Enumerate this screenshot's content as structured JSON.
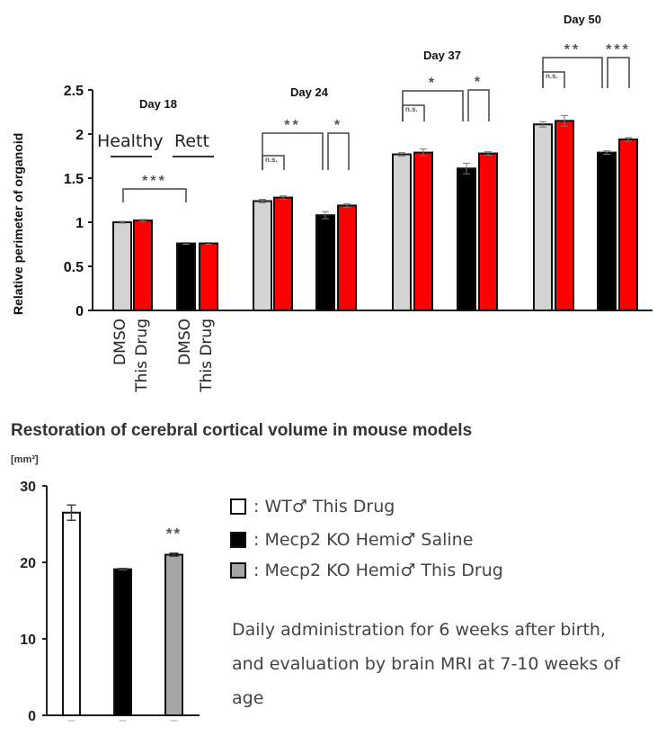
{
  "chart_data": [
    {
      "type": "bar",
      "ylabel": "Relative perimeter of organoid",
      "ylim": [
        0,
        2.5
      ],
      "yticks": [
        "0",
        "0.5",
        "1",
        "1.5",
        "2",
        "2.5"
      ],
      "groups": [
        "Day 18",
        "Day 24",
        "Day 37",
        "Day 50"
      ],
      "group_labels": {
        "healthy": "Healthy",
        "rett": "Rett"
      },
      "xtick_labels": [
        "DMSO",
        "This Drug",
        "DMSO",
        "This Drug"
      ],
      "series": [
        {
          "name": "Healthy DMSO",
          "color": "#d3d3d3",
          "values": [
            1.0,
            1.24,
            1.77,
            2.11
          ],
          "errors": [
            0.01,
            0.02,
            0.02,
            0.03
          ]
        },
        {
          "name": "Healthy This Drug",
          "color": "#ff0000",
          "values": [
            1.02,
            1.28,
            1.79,
            2.15
          ],
          "errors": [
            0.01,
            0.02,
            0.04,
            0.06
          ]
        },
        {
          "name": "Rett DMSO",
          "color": "#000000",
          "values": [
            0.76,
            1.08,
            1.61,
            1.79
          ],
          "errors": [
            0.01,
            0.04,
            0.06,
            0.02
          ]
        },
        {
          "name": "Rett This Drug",
          "color": "#ff0000",
          "values": [
            0.76,
            1.19,
            1.78,
            1.94
          ],
          "errors": [
            0.01,
            0.02,
            0.02,
            0.02
          ]
        }
      ],
      "annotations": [
        {
          "group": "Day 18",
          "from": "Healthy DMSO",
          "to": "Rett DMSO",
          "label": "***"
        },
        {
          "group": "Day 24",
          "from": "Healthy DMSO",
          "to": "Healthy This Drug",
          "label": "n.s."
        },
        {
          "group": "Day 24",
          "from": "Healthy DMSO",
          "to": "Rett DMSO",
          "label": "**"
        },
        {
          "group": "Day 24",
          "from": "Rett DMSO",
          "to": "Rett This Drug",
          "label": "*"
        },
        {
          "group": "Day 37",
          "from": "Healthy DMSO",
          "to": "Healthy This Drug",
          "label": "n.s."
        },
        {
          "group": "Day 37",
          "from": "Healthy DMSO",
          "to": "Rett DMSO",
          "label": "*"
        },
        {
          "group": "Day 37",
          "from": "Rett DMSO",
          "to": "Rett This Drug",
          "label": "*"
        },
        {
          "group": "Day 50",
          "from": "Healthy DMSO",
          "to": "Healthy This Drug",
          "label": "n.s."
        },
        {
          "group": "Day 50",
          "from": "Healthy DMSO",
          "to": "Rett DMSO",
          "label": "**"
        },
        {
          "group": "Day 50",
          "from": "Rett DMSO",
          "to": "Rett This Drug",
          "label": "***"
        }
      ]
    },
    {
      "type": "bar",
      "title": "Restoration of cerebral cortical volume in mouse models",
      "ylabel": "[mm³]",
      "ylim": [
        0,
        30
      ],
      "yticks": [
        "0",
        "10",
        "20",
        "30"
      ],
      "categories": [
        "WT♂ This Drug",
        "Mecp2 KO Hemi♂ Saline",
        "Mecp2 KO Hemi♂ This Drug"
      ],
      "values": [
        26.5,
        19.1,
        21.0
      ],
      "errors": [
        1.0,
        0.1,
        0.2
      ],
      "colors": [
        "#ffffff",
        "#000000",
        "#a6a6a6"
      ],
      "annotations": [
        {
          "category": "Mecp2 KO Hemi♂ This Drug",
          "label": "**"
        }
      ],
      "legend": [
        {
          "text": ": WT♂ This Drug",
          "color": "#ffffff"
        },
        {
          "text": ": Mecp2 KO Hemi♂ Saline",
          "color": "#000000"
        },
        {
          "text": ": Mecp2 KO Hemi♂ This Drug",
          "color": "#a6a6a6"
        }
      ],
      "note": "Daily administration for 6 weeks after birth, and evaluation by brain MRI at 7-10 weeks of age"
    }
  ]
}
